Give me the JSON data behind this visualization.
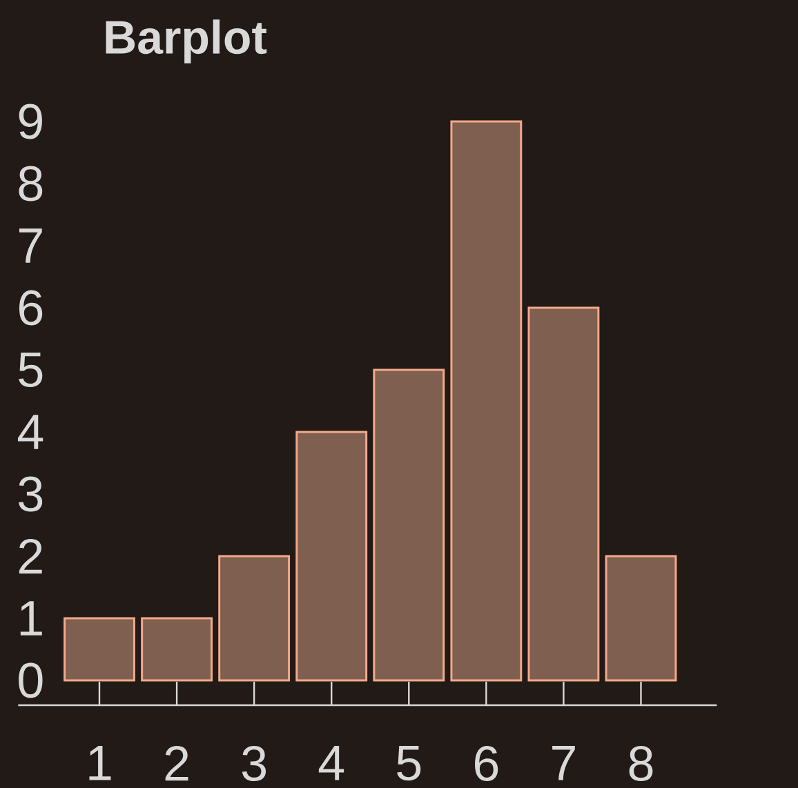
{
  "chart_data": {
    "type": "bar",
    "title": "Barplot",
    "categories": [
      "1",
      "2",
      "3",
      "4",
      "5",
      "6",
      "7",
      "8"
    ],
    "values": [
      1,
      1,
      2,
      4,
      5,
      9,
      6,
      2
    ],
    "color": "#7f5f4f",
    "ylim": [
      -0.4,
      9.2
    ],
    "yticks": [
      0,
      1,
      2,
      3,
      4,
      5,
      6,
      7,
      8,
      9
    ]
  }
}
